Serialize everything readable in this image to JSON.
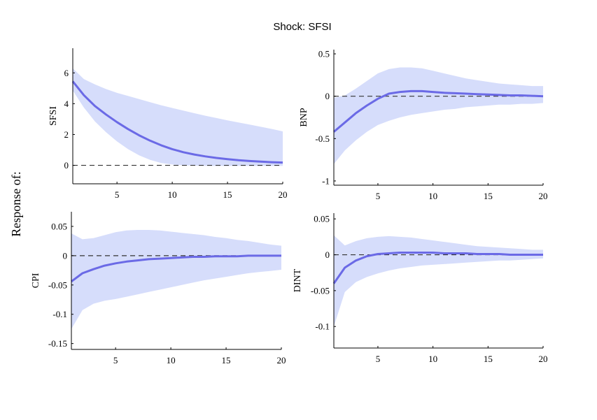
{
  "title": "Shock: SFSI",
  "row_label": "Response of:",
  "colors": {
    "band": "#d6ddfb",
    "line": "#6b6ae6",
    "zero_line": "#333333",
    "axis": "#000000"
  },
  "chart_data": [
    {
      "type": "area",
      "ylabel": "SFSI",
      "xlim": [
        1,
        20
      ],
      "ylim": [
        -1.2,
        7.6
      ],
      "xticks": [
        5,
        10,
        15,
        20
      ],
      "xtick_labels": [
        "5",
        "10",
        "15",
        "20"
      ],
      "yticks": [
        0,
        2,
        4,
        6
      ],
      "ytick_labels": [
        "0",
        "2",
        "4",
        "6"
      ],
      "zero_line_style": "dashed",
      "x": [
        1,
        2,
        3,
        4,
        5,
        6,
        7,
        8,
        9,
        10,
        11,
        12,
        13,
        14,
        15,
        16,
        17,
        18,
        19,
        20
      ],
      "irf": [
        5.45,
        4.55,
        3.85,
        3.3,
        2.8,
        2.35,
        1.95,
        1.6,
        1.3,
        1.05,
        0.85,
        0.7,
        0.58,
        0.48,
        0.4,
        0.33,
        0.28,
        0.24,
        0.2,
        0.18
      ],
      "upper": [
        6.3,
        5.6,
        5.25,
        4.95,
        4.7,
        4.5,
        4.3,
        4.1,
        3.9,
        3.72,
        3.55,
        3.38,
        3.22,
        3.07,
        2.92,
        2.78,
        2.64,
        2.5,
        2.36,
        2.2
      ],
      "lower": [
        4.85,
        3.75,
        2.85,
        2.15,
        1.55,
        1.05,
        0.65,
        0.35,
        0.15,
        0.05,
        0.0,
        -0.02,
        -0.03,
        -0.04,
        -0.04,
        -0.04,
        -0.04,
        -0.04,
        -0.04,
        -0.04
      ]
    },
    {
      "type": "area",
      "ylabel": "BNP",
      "xlim": [
        1,
        20
      ],
      "ylim": [
        -1.05,
        0.55
      ],
      "xticks": [
        5,
        10,
        15,
        20
      ],
      "xtick_labels": [
        "5",
        "10",
        "15",
        "20"
      ],
      "yticks": [
        -1,
        -0.5,
        0,
        0.5
      ],
      "ytick_labels": [
        "-1",
        "-0.5",
        "0",
        "0.5"
      ],
      "zero_line_style": "dashed",
      "x": [
        1,
        2,
        3,
        4,
        5,
        6,
        7,
        8,
        9,
        10,
        11,
        12,
        13,
        14,
        15,
        16,
        17,
        18,
        19,
        20
      ],
      "irf": [
        -0.42,
        -0.31,
        -0.2,
        -0.11,
        -0.03,
        0.03,
        0.05,
        0.06,
        0.06,
        0.05,
        0.04,
        0.035,
        0.03,
        0.025,
        0.02,
        0.015,
        0.01,
        0.01,
        0.005,
        0.0
      ],
      "upper": [
        -0.02,
        0.01,
        0.09,
        0.18,
        0.27,
        0.32,
        0.34,
        0.34,
        0.33,
        0.3,
        0.27,
        0.24,
        0.21,
        0.19,
        0.17,
        0.15,
        0.14,
        0.13,
        0.12,
        0.12
      ],
      "lower": [
        -0.8,
        -0.64,
        -0.52,
        -0.42,
        -0.34,
        -0.29,
        -0.25,
        -0.22,
        -0.2,
        -0.18,
        -0.16,
        -0.15,
        -0.13,
        -0.12,
        -0.11,
        -0.1,
        -0.1,
        -0.09,
        -0.09,
        -0.08
      ]
    },
    {
      "type": "area",
      "ylabel": "CPI",
      "xlim": [
        1,
        20
      ],
      "ylim": [
        -0.16,
        0.075
      ],
      "xticks": [
        5,
        10,
        15,
        20
      ],
      "xtick_labels": [
        "5",
        "10",
        "15",
        "20"
      ],
      "yticks": [
        -0.15,
        -0.1,
        -0.05,
        0,
        0.05
      ],
      "ytick_labels": [
        "-0.15",
        "-0.1",
        "-0.05",
        "0",
        "0.05"
      ],
      "zero_line_style": "dashed",
      "x": [
        1,
        2,
        3,
        4,
        5,
        6,
        7,
        8,
        9,
        10,
        11,
        12,
        13,
        14,
        15,
        16,
        17,
        18,
        19,
        20
      ],
      "irf": [
        -0.044,
        -0.03,
        -0.023,
        -0.017,
        -0.013,
        -0.01,
        -0.008,
        -0.006,
        -0.005,
        -0.004,
        -0.003,
        -0.002,
        -0.002,
        -0.001,
        -0.001,
        -0.001,
        0.0,
        0.0,
        0.0,
        0.0
      ],
      "upper": [
        0.038,
        0.028,
        0.03,
        0.035,
        0.04,
        0.043,
        0.044,
        0.044,
        0.043,
        0.041,
        0.039,
        0.037,
        0.035,
        0.032,
        0.03,
        0.027,
        0.025,
        0.022,
        0.019,
        0.017
      ],
      "lower": [
        -0.125,
        -0.093,
        -0.082,
        -0.077,
        -0.074,
        -0.07,
        -0.066,
        -0.062,
        -0.058,
        -0.054,
        -0.05,
        -0.046,
        -0.042,
        -0.039,
        -0.036,
        -0.033,
        -0.03,
        -0.028,
        -0.026,
        -0.024
      ]
    },
    {
      "type": "area",
      "ylabel": "DINT",
      "xlim": [
        1,
        20
      ],
      "ylim": [
        -0.13,
        0.058
      ],
      "xticks": [
        5,
        10,
        15,
        20
      ],
      "xtick_labels": [
        "5",
        "10",
        "15",
        "20"
      ],
      "yticks": [
        -0.1,
        -0.05,
        0,
        0.05
      ],
      "ytick_labels": [
        "-0.1",
        "-0.05",
        "0",
        "0.05"
      ],
      "zero_line_style": "dashed",
      "x": [
        1,
        2,
        3,
        4,
        5,
        6,
        7,
        8,
        9,
        10,
        11,
        12,
        13,
        14,
        15,
        16,
        17,
        18,
        19,
        20
      ],
      "irf": [
        -0.04,
        -0.018,
        -0.008,
        -0.002,
        0.001,
        0.002,
        0.003,
        0.003,
        0.003,
        0.003,
        0.002,
        0.002,
        0.002,
        0.001,
        0.001,
        0.001,
        0.0,
        0.0,
        0.0,
        0.0
      ],
      "upper": [
        0.027,
        0.013,
        0.019,
        0.023,
        0.025,
        0.026,
        0.025,
        0.024,
        0.022,
        0.02,
        0.018,
        0.016,
        0.014,
        0.012,
        0.011,
        0.01,
        0.009,
        0.008,
        0.007,
        0.007
      ],
      "lower": [
        -0.1,
        -0.052,
        -0.038,
        -0.031,
        -0.026,
        -0.022,
        -0.019,
        -0.017,
        -0.015,
        -0.014,
        -0.013,
        -0.012,
        -0.011,
        -0.01,
        -0.009,
        -0.008,
        -0.008,
        -0.007,
        -0.006,
        -0.005
      ]
    }
  ]
}
